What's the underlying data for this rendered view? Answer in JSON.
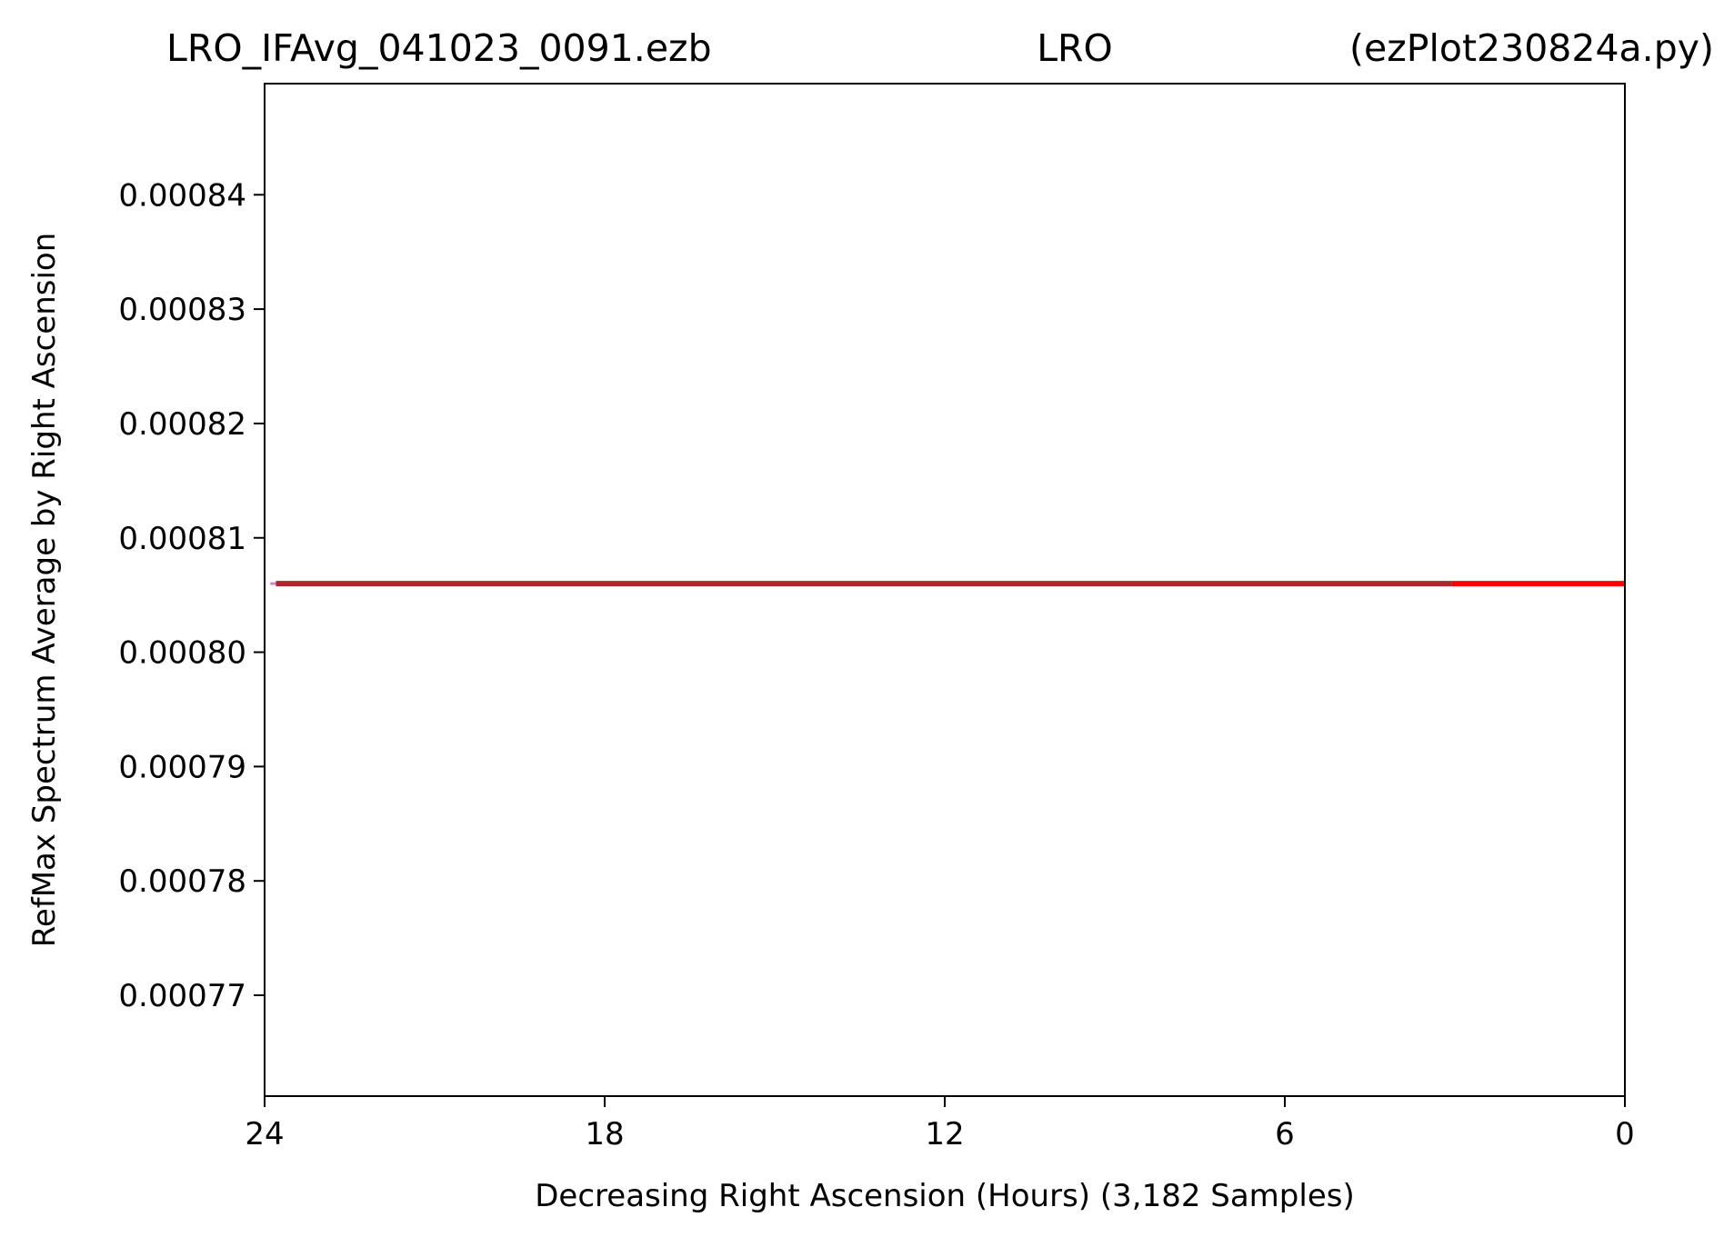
{
  "chart_data": {
    "type": "line",
    "title_parts": [
      "LRO_IFAvg_041023_0091.ezb",
      "LRO",
      "(ezPlot230824a.py)"
    ],
    "xlabel": "Decreasing Right Ascension (Hours) (3,182 Samples)",
    "ylabel": "RefMax Spectrum Average by Right Ascension",
    "xlim": [
      24,
      0
    ],
    "ylim": [
      0.00076118,
      0.00084972
    ],
    "x_ticks": [
      24,
      18,
      12,
      6,
      0
    ],
    "x_tick_labels": [
      "24",
      "18",
      "12",
      "6",
      "0"
    ],
    "y_ticks": [
      0.00077,
      0.00078,
      0.00079,
      0.0008,
      0.00081,
      0.00082,
      0.00083,
      0.00084
    ],
    "y_tick_labels": [
      "0.00077",
      "0.00078",
      "0.00079",
      "0.00080",
      "0.00081",
      "0.00082",
      "0.00083",
      "0.00084"
    ],
    "grid": false,
    "series": [
      {
        "x": [
          23.9,
          23.8
        ],
        "y": [
          0.000806,
          0.000806
        ],
        "color": "#cc88cc",
        "width": 3
      },
      {
        "x": [
          23.8,
          3.05
        ],
        "y": [
          0.000806,
          0.000806
        ],
        "color": "#a52a2a",
        "width": 6
      },
      {
        "x": [
          3.05,
          0.0
        ],
        "y": [
          0.000806,
          0.000806
        ],
        "color": "#ff0000",
        "width": 6
      }
    ]
  }
}
